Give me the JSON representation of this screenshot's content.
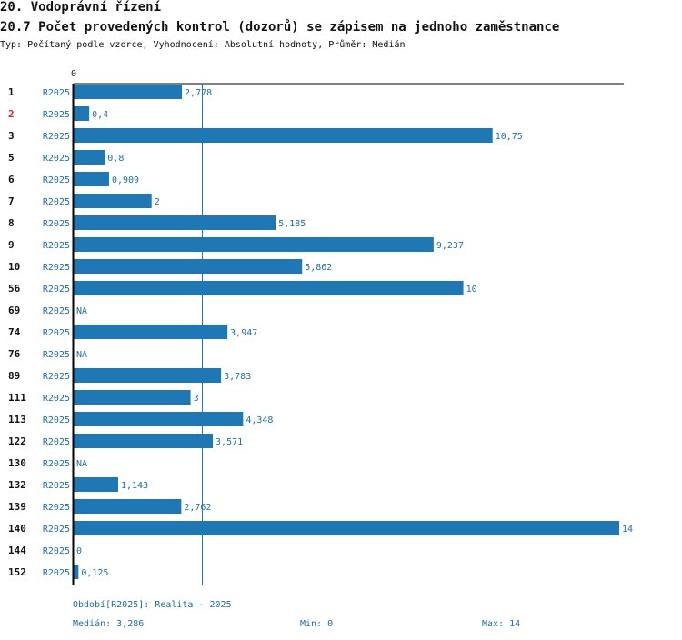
{
  "section_title": "20. Vodoprávní řízení",
  "indicator_title": "20.7 Počet provedených kontrol (dozorů) se zápisem na jednoho zaměstnance",
  "subtitle": "Typ: Počítaný podle vzorce, Vyhodnocení: Absolutní hodnoty, Průměr: Medián",
  "colors": {
    "bar": "#1f77b4",
    "text_blue": "#1f6fa8",
    "highlight": "#d62728",
    "axis": "#000000"
  },
  "chart_data": {
    "type": "bar",
    "orientation": "horizontal",
    "title": "20.7 Počet provedených kontrol (dozorů) se zápisem na jednoho zaměstnance",
    "axis_zero_label": "0",
    "xlim": [
      0,
      14
    ],
    "median": 3.286,
    "series_label": "R2025",
    "categories": [
      "1",
      "2",
      "3",
      "5",
      "6",
      "7",
      "8",
      "9",
      "10",
      "56",
      "69",
      "74",
      "76",
      "89",
      "111",
      "113",
      "122",
      "130",
      "132",
      "139",
      "140",
      "144",
      "152"
    ],
    "highlighted_category": "2",
    "values": [
      2.778,
      0.4,
      10.75,
      0.8,
      0.909,
      2,
      5.185,
      9.237,
      5.862,
      10,
      null,
      3.947,
      null,
      3.783,
      3,
      4.348,
      3.571,
      null,
      1.143,
      2.762,
      14,
      0,
      0.125
    ],
    "value_labels": [
      "2,778",
      "0,4",
      "10,75",
      "0,8",
      "0,909",
      "2",
      "5,185",
      "9,237",
      "5,862",
      "10",
      "NA",
      "3,947",
      "NA",
      "3,783",
      "3",
      "4,348",
      "3,571",
      "NA",
      "1,143",
      "2,762",
      "14",
      "0",
      "0,125"
    ]
  },
  "footer": {
    "period": "Období[R2025]: Realita - 2025",
    "median": "Medián: 3,286",
    "min": "Min: 0",
    "max": "Max: 14"
  }
}
